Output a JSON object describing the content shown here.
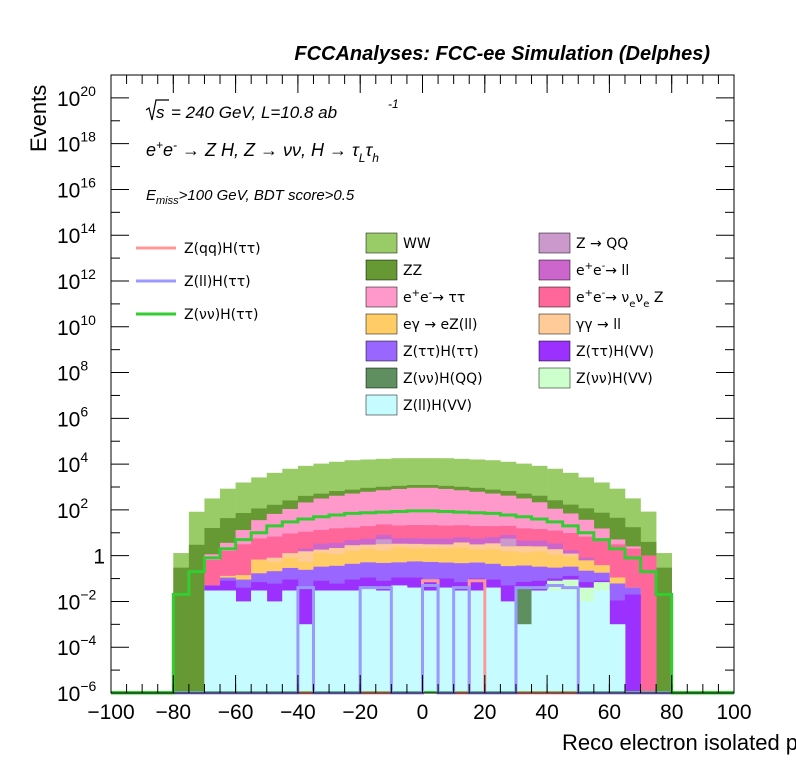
{
  "header_text": "FCCAnalyses: FCC-ee Simulation (Delphes)",
  "annotations": {
    "energy": "= 240 GeV, L=10.8 ab",
    "energy_sup": "-1",
    "process": "e+e- → Z H, Z → νν, H → τLτh",
    "selection": "Emiss>100 GeV, BDT score>0.5"
  },
  "chart_data": {
    "type": "histogram",
    "title": "FCCAnalyses: FCC-ee Simulation (Delphes)",
    "xlabel": "Reco electron isolated pz [GeV]",
    "ylabel": "Events",
    "xlim": [
      -100,
      100
    ],
    "ylim": [
      1e-06,
      1e+21
    ],
    "yscale": "log",
    "x_ticks": [
      "-100",
      "-80",
      "-60",
      "-40",
      "-20",
      "0",
      "20",
      "40",
      "60",
      "80",
      "100"
    ],
    "y_ticks": [
      {
        "base": "10",
        "exp": "-6"
      },
      {
        "base": "10",
        "exp": "-4"
      },
      {
        "base": "10",
        "exp": "-2"
      },
      {
        "base": "1",
        "exp": ""
      },
      {
        "base": "10",
        "exp": "2"
      },
      {
        "base": "10",
        "exp": "4"
      },
      {
        "base": "10",
        "exp": "6"
      },
      {
        "base": "10",
        "exp": "8"
      },
      {
        "base": "10",
        "exp": "10"
      },
      {
        "base": "10",
        "exp": "12"
      },
      {
        "base": "10",
        "exp": "14"
      },
      {
        "base": "10",
        "exp": "16"
      },
      {
        "base": "10",
        "exp": "18"
      },
      {
        "base": "10",
        "exp": "20"
      }
    ],
    "bin_edges": [
      -100,
      -95,
      -90,
      -85,
      -80,
      -75,
      -70,
      -65,
      -60,
      -55,
      -50,
      -45,
      -40,
      -35,
      -30,
      -25,
      -20,
      -15,
      -10,
      -5,
      0,
      5,
      10,
      15,
      20,
      25,
      30,
      35,
      40,
      45,
      50,
      55,
      60,
      65,
      70,
      75,
      80,
      85,
      90,
      95,
      100
    ],
    "stacked_series": [
      {
        "name": "Z(ll)H(VV)",
        "color": "#c6fcff",
        "values": [
          0,
          0,
          0,
          0,
          0,
          0,
          0.03,
          0.03,
          0.01,
          0.03,
          0.01,
          0.03,
          0.001,
          0.03,
          0.03,
          0.03,
          0.04,
          0.03,
          0.05,
          0.04,
          0.03,
          0.04,
          0.03,
          0.03,
          0.04,
          0.01,
          0.001,
          0.03,
          0.03,
          0.03,
          0.01,
          0.03,
          0.001,
          0,
          0,
          0,
          0,
          0,
          0,
          0
        ]
      },
      {
        "name": "Z(νν)H(VV)",
        "color": "#ccffcc",
        "values": [
          0,
          0,
          0,
          0,
          0,
          0,
          0,
          0,
          0,
          0,
          0,
          0,
          0,
          0,
          0,
          0,
          0,
          0,
          0,
          0,
          0,
          0,
          0,
          0,
          0,
          0,
          0,
          0,
          0.05,
          0.06,
          0.03,
          0.04,
          0,
          0,
          0,
          0,
          0,
          0,
          0,
          0
        ]
      },
      {
        "name": "Z(νν)H(QQ)",
        "color": "#5f8f5f",
        "values": [
          0,
          0,
          0,
          0,
          0,
          0,
          0,
          0,
          0,
          0,
          0,
          0,
          0,
          0,
          0,
          0,
          0,
          0,
          0,
          0,
          0,
          0,
          0,
          0,
          0,
          0,
          0.04,
          0,
          0,
          0,
          0,
          0,
          0,
          0,
          0,
          0,
          0,
          0,
          0,
          0
        ]
      },
      {
        "name": "Z(ττ)H(VV)",
        "color": "#9b30ff",
        "values": [
          0,
          0,
          0,
          0,
          0,
          0,
          0.02,
          0.05,
          0.03,
          0.04,
          0.05,
          0.06,
          0.04,
          0.05,
          0.03,
          0.06,
          0.07,
          0.05,
          0.06,
          0.07,
          0.05,
          0.06,
          0.04,
          0.07,
          0.05,
          0.04,
          0.03,
          0.05,
          0.02,
          0.04,
          0.03,
          0.01,
          0.01,
          0.02,
          0,
          0,
          0,
          0,
          0,
          0
        ]
      },
      {
        "name": "Z(ττ)H(ττ)",
        "color": "#9966ff",
        "values": [
          0,
          0,
          0,
          0,
          0,
          0,
          0,
          0.03,
          0.05,
          0.1,
          0.15,
          0.2,
          0.2,
          0.25,
          0.3,
          0.35,
          0.4,
          0.4,
          0.4,
          0.45,
          0.45,
          0.4,
          0.4,
          0.4,
          0.35,
          0.3,
          0.3,
          0.25,
          0.2,
          0.2,
          0.15,
          0.1,
          0.05,
          0.02,
          0,
          0,
          0,
          0,
          0,
          0
        ]
      },
      {
        "name": "eγ → eZ(ll)",
        "color": "#ffcc66",
        "values": [
          0,
          0,
          0,
          0,
          0,
          0,
          0,
          0.02,
          0.05,
          0.5,
          0.3,
          0.5,
          0.3,
          1.0,
          0.8,
          1.2,
          1.5,
          1.2,
          1.8,
          1.5,
          1.6,
          1.6,
          1.8,
          1.4,
          1.5,
          1.2,
          1.0,
          1.2,
          0.8,
          0.6,
          0.4,
          0.2,
          0.05,
          0,
          0,
          0,
          0,
          0,
          0,
          0
        ]
      },
      {
        "name": "γγ → ll",
        "color": "#ffcc99",
        "values": [
          0,
          0,
          0,
          0,
          0,
          0,
          0,
          0,
          0,
          0,
          0.3,
          0.5,
          1.0,
          0.5,
          1.0,
          1.2,
          1.0,
          1.5,
          1.0,
          1.2,
          1.0,
          1.0,
          1.5,
          1.2,
          1.5,
          1.0,
          1.2,
          1.0,
          0.8,
          0.3,
          0,
          0,
          0,
          0,
          0,
          0,
          0,
          0,
          0,
          0
        ]
      },
      {
        "name": "Z → QQ",
        "color": "#cc99cc",
        "values": [
          0,
          0,
          0,
          0,
          0,
          0,
          0,
          0,
          0,
          0,
          0,
          0,
          0,
          0,
          0,
          0,
          0,
          2,
          0,
          0,
          0,
          0,
          0,
          0,
          0,
          3,
          0,
          0,
          0,
          0,
          0,
          0,
          0,
          0,
          0,
          0,
          0,
          0,
          0,
          0
        ]
      },
      {
        "name": "e+e- → ll",
        "color": "#cc66cc",
        "values": [
          0,
          0,
          0,
          0,
          0,
          0,
          0,
          0,
          0,
          0,
          0,
          0,
          0.5,
          1.5,
          1.5,
          2.0,
          2.5,
          3.0,
          2.5,
          2.5,
          2.5,
          2.5,
          2.5,
          2.5,
          3.0,
          2.5,
          2.0,
          2.0,
          1.5,
          0.5,
          0.2,
          0,
          0,
          0,
          0,
          0,
          0,
          0,
          0,
          0
        ]
      },
      {
        "name": "e+e- → νeνe Z",
        "color": "#ff6699",
        "values": [
          0,
          0,
          0,
          0,
          0,
          0,
          0.6,
          1.5,
          3,
          5,
          6,
          8,
          9,
          10,
          12,
          12,
          14,
          15,
          15,
          16,
          16,
          15,
          15,
          14,
          13,
          12,
          11,
          10,
          9,
          8,
          6,
          5,
          3,
          2,
          1,
          0,
          0,
          0,
          0,
          0
        ]
      },
      {
        "name": "e+e- → ττ",
        "color": "#ff99cc",
        "values": [
          0,
          0,
          0,
          0,
          0,
          0,
          0.5,
          2,
          10,
          30,
          60,
          100,
          200,
          300,
          400,
          500,
          600,
          700,
          800,
          900,
          900,
          800,
          700,
          600,
          500,
          400,
          300,
          200,
          100,
          60,
          30,
          10,
          2,
          0.5,
          0,
          0,
          0,
          0,
          0,
          0
        ]
      },
      {
        "name": "ZZ",
        "color": "#669933",
        "values": [
          0,
          0,
          0,
          0,
          0.3,
          3,
          15,
          40,
          60,
          80,
          100,
          150,
          200,
          200,
          250,
          250,
          300,
          300,
          300,
          300,
          300,
          300,
          300,
          300,
          250,
          250,
          200,
          200,
          150,
          100,
          80,
          60,
          40,
          15,
          3,
          0.3,
          0,
          0,
          0,
          0
        ]
      },
      {
        "name": "WW",
        "color": "#99cc66",
        "values": [
          0,
          0,
          0,
          0,
          1,
          80,
          300,
          800,
          1500,
          2500,
          4000,
          6000,
          8000,
          10000,
          12000,
          14000,
          15000,
          16000,
          17000,
          17000,
          17000,
          17000,
          16000,
          15000,
          14000,
          12000,
          10000,
          8000,
          6000,
          4000,
          2500,
          1500,
          800,
          300,
          80,
          1,
          0,
          0,
          0,
          0
        ]
      }
    ],
    "signal_series": [
      {
        "name": "Z(qq)H(ττ)",
        "color": "#ff9999",
        "values": [
          0,
          0,
          0,
          0,
          0,
          0,
          0,
          0,
          0,
          0,
          0,
          0,
          0,
          0,
          0,
          0,
          0,
          0,
          0,
          0,
          0.08,
          0,
          0,
          0.08,
          0,
          0,
          0,
          0,
          0,
          0,
          0,
          0,
          0,
          0,
          0,
          0,
          0,
          0,
          0,
          0
        ]
      },
      {
        "name": "Z(ll)H(ττ)",
        "color": "#9999ff",
        "values": [
          0,
          0,
          0,
          0,
          0,
          0,
          0,
          0,
          0,
          0,
          0,
          0,
          0.04,
          0,
          0,
          0,
          0.04,
          0.04,
          0,
          0,
          0.05,
          0,
          0.04,
          0,
          0,
          0,
          0.04,
          0.04,
          0.05,
          0.04,
          0,
          0,
          0,
          0,
          0,
          0,
          0,
          0,
          0,
          0
        ]
      },
      {
        "name": "Z(νν)H(ττ)",
        "color": "#33cc33",
        "values": [
          0,
          0,
          0,
          0,
          0.02,
          0.2,
          0.8,
          2,
          5,
          10,
          20,
          30,
          40,
          50,
          60,
          70,
          75,
          80,
          85,
          90,
          90,
          85,
          80,
          75,
          70,
          60,
          50,
          40,
          30,
          20,
          10,
          5,
          2,
          0.8,
          0.2,
          0.02,
          0,
          0,
          0,
          0
        ]
      }
    ],
    "legend_left": [
      "Z(qq)H(ττ)",
      "Z(ll)H(ττ)",
      "Z(νν)H(ττ)"
    ],
    "legend_mid": [
      "WW",
      "ZZ",
      "e+e- → ττ",
      "eγ → eZ(ll)",
      "Z(ττ)H(ττ)",
      "Z(νν)H(QQ)",
      "Z(ll)H(VV)"
    ],
    "legend_right": [
      "Z → QQ",
      "e+e- → ll",
      "e+e- → νeνe Z",
      "γγ → ll",
      "Z(ττ)H(VV)",
      "Z(νν)H(VV)"
    ]
  }
}
